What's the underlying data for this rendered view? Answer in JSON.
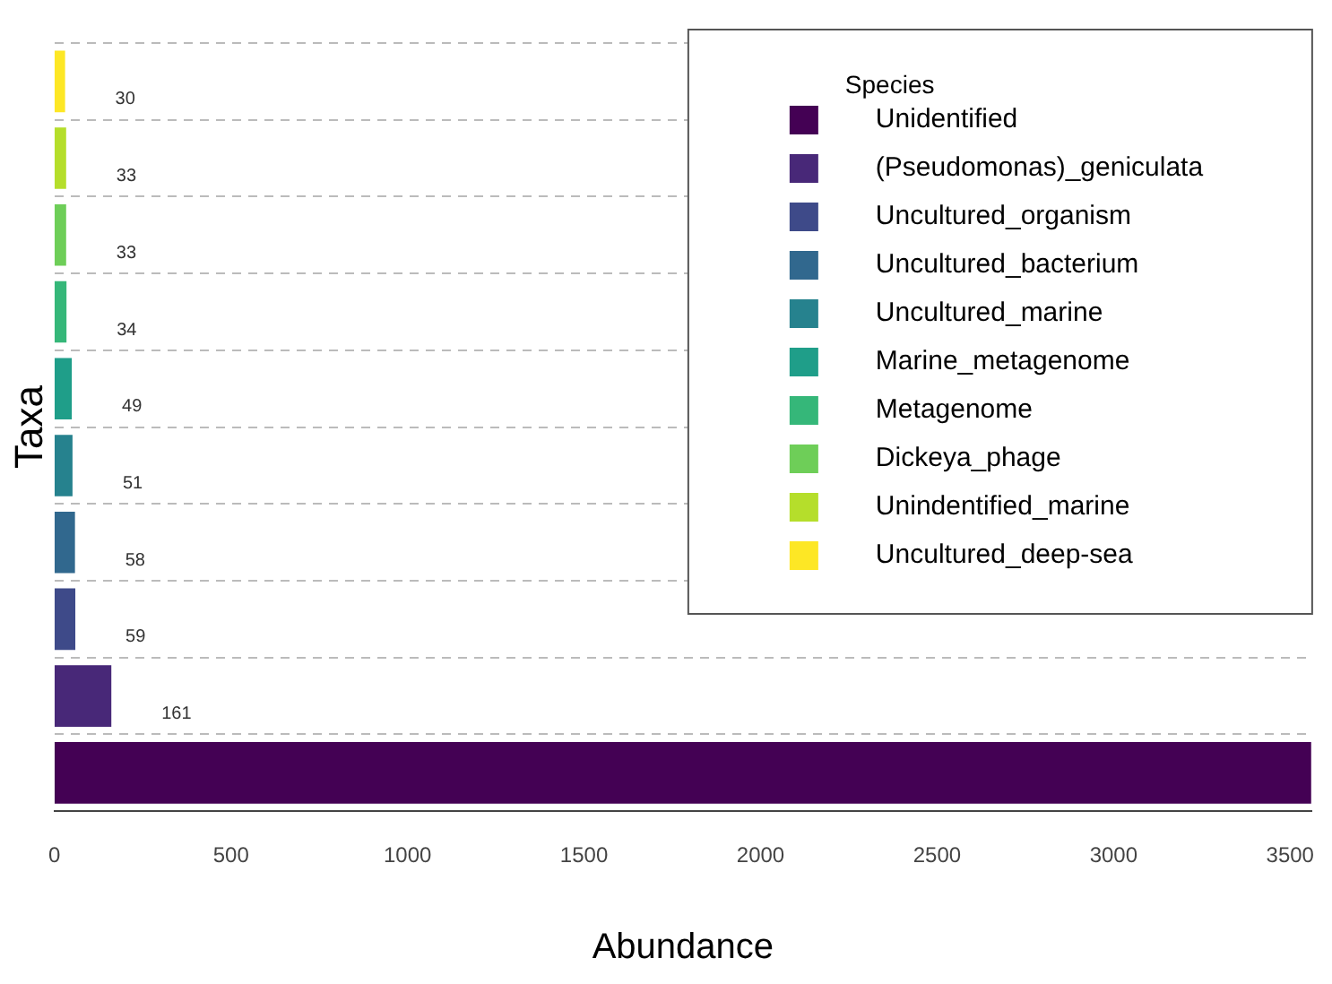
{
  "chart_data": {
    "type": "bar",
    "orientation": "horizontal",
    "xlabel": "Abundance",
    "ylabel": "Taxa",
    "legend_title": "Species",
    "legend": "top right",
    "grid": "y",
    "stacked": true,
    "tick_labels": "x",
    "categories": [
      null,
      null,
      null,
      null,
      null,
      null,
      null,
      null,
      null,
      null
    ],
    "xlim": [
      0,
      3560
    ],
    "xticks": [
      0,
      500,
      1000,
      1500,
      2000,
      2500,
      3000,
      3500
    ],
    "series": [
      {
        "name": "Unidentified",
        "color": "#440154",
        "values": [
          null,
          null,
          null,
          null,
          null,
          null,
          null,
          null,
          null,
          3560
        ],
        "value_labels": [
          null,
          null,
          null,
          null,
          null,
          null,
          null,
          null,
          null,
          null
        ]
      },
      {
        "name": "(Pseudomonas)_geniculata",
        "color": "#482878",
        "values": [
          null,
          null,
          null,
          null,
          null,
          null,
          null,
          null,
          161,
          null
        ],
        "value_labels": [
          null,
          null,
          null,
          null,
          null,
          null,
          null,
          null,
          "161",
          null
        ]
      },
      {
        "name": "Uncultured_organism",
        "color": "#3e4a89",
        "values": [
          null,
          null,
          null,
          null,
          null,
          null,
          null,
          59,
          null,
          null
        ],
        "value_labels": [
          null,
          null,
          null,
          null,
          null,
          null,
          null,
          "59",
          null,
          null
        ]
      },
      {
        "name": "Uncultured_bacterium",
        "color": "#31688e",
        "values": [
          null,
          null,
          null,
          null,
          null,
          null,
          58,
          null,
          null,
          null
        ],
        "value_labels": [
          null,
          null,
          null,
          null,
          null,
          null,
          "58",
          null,
          null,
          null
        ]
      },
      {
        "name": "Uncultured_marine",
        "color": "#26828e",
        "values": [
          null,
          null,
          null,
          null,
          null,
          51,
          null,
          null,
          null,
          null
        ],
        "value_labels": [
          null,
          null,
          null,
          null,
          null,
          "51",
          null,
          null,
          null,
          null
        ]
      },
      {
        "name": "Marine_metagenome",
        "color": "#1f9e89",
        "values": [
          null,
          null,
          null,
          null,
          49,
          null,
          null,
          null,
          null,
          null
        ],
        "value_labels": [
          null,
          null,
          null,
          null,
          "49",
          null,
          null,
          null,
          null,
          null
        ]
      },
      {
        "name": "Metagenome",
        "color": "#35b779",
        "values": [
          null,
          null,
          null,
          34,
          null,
          null,
          null,
          null,
          null,
          null
        ],
        "value_labels": [
          null,
          null,
          null,
          "34",
          null,
          null,
          null,
          null,
          null,
          null
        ]
      },
      {
        "name": "Dickeya_phage",
        "color": "#6ece58",
        "values": [
          null,
          null,
          33,
          null,
          null,
          null,
          null,
          null,
          null,
          null
        ],
        "value_labels": [
          null,
          null,
          "33",
          null,
          null,
          null,
          null,
          null,
          null,
          null
        ]
      },
      {
        "name": "Unindentified_marine",
        "color": "#b5de2b",
        "values": [
          null,
          33,
          null,
          null,
          null,
          null,
          null,
          null,
          null,
          null
        ],
        "value_labels": [
          null,
          "33",
          null,
          null,
          null,
          null,
          null,
          null,
          null,
          null
        ]
      },
      {
        "name": "Uncultured_deep-sea",
        "color": "#fde725",
        "values": [
          30,
          null,
          null,
          null,
          null,
          null,
          null,
          null,
          null,
          null
        ],
        "value_labels": [
          "30",
          null,
          null,
          null,
          null,
          null,
          null,
          null,
          null,
          null
        ]
      }
    ]
  }
}
